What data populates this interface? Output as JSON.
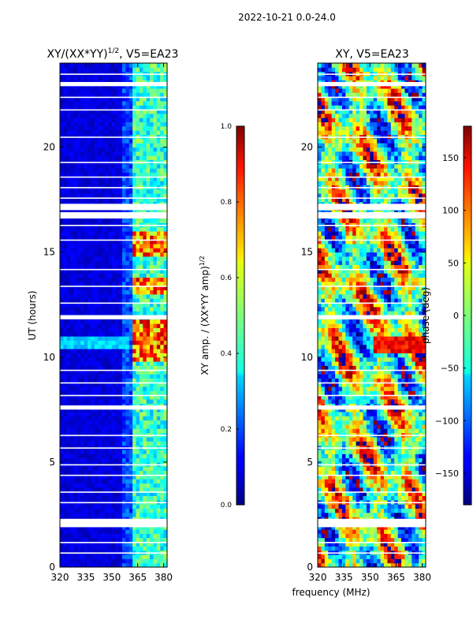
{
  "suptitle": "2022-10-21 0.0-24.0",
  "shared_xlabel": "frequency (MHz)",
  "chart_data": [
    {
      "type": "heatmap",
      "title_main": "XY/(XX*YY)",
      "title_exp": "1/2",
      "title_tail": ", V5=EA23",
      "xlabel": "",
      "ylabel": "UT (hours)",
      "xlim": [
        320,
        382
      ],
      "ylim": [
        0,
        24
      ],
      "xticks": [
        320,
        335,
        350,
        365,
        380
      ],
      "yticks": [
        0,
        5,
        10,
        15,
        20
      ],
      "bright_channels_mhz": [
        [
          362,
          366
        ],
        [
          367,
          371
        ],
        [
          372,
          376
        ],
        [
          377,
          381
        ]
      ],
      "high_amp_intervals_hours": [
        [
          9.8,
          11.8
        ],
        [
          13.0,
          13.8
        ],
        [
          14.8,
          16.0
        ]
      ],
      "flagged_gaps_hours": [
        [
          1.9,
          2.3
        ],
        [
          7.5,
          7.7
        ],
        [
          11.8,
          12.0
        ],
        [
          16.6,
          16.9
        ],
        [
          17.0,
          17.3
        ],
        [
          22.9,
          23.1
        ]
      ],
      "colorbar": {
        "label_main": "XY amp. / (XX*YY amp)",
        "label_exp": "1/2",
        "range": [
          0.0,
          1.0
        ],
        "ticks": [
          "0.0",
          "0.2",
          "0.4",
          "0.6",
          "0.8",
          "1.0"
        ]
      }
    },
    {
      "type": "heatmap",
      "title_main": "XY, V5=EA23",
      "xlabel": "frequency (MHz)",
      "ylabel": "",
      "xlim": [
        320,
        382
      ],
      "ylim": [
        0,
        24
      ],
      "xticks": [
        320,
        335,
        350,
        365,
        380
      ],
      "yticks": [
        0,
        5,
        10,
        15,
        20
      ],
      "flagged_gaps_hours": [
        [
          1.9,
          2.3
        ],
        [
          7.5,
          7.7
        ],
        [
          11.8,
          12.0
        ],
        [
          16.6,
          16.9
        ],
        [
          17.0,
          17.3
        ],
        [
          22.9,
          23.1
        ]
      ],
      "colorbar": {
        "label_main": "phase (deg)",
        "range": [
          -180,
          180
        ],
        "ticks": [
          "150",
          "100",
          "50",
          "0",
          "−50",
          "−100",
          "−150"
        ],
        "tick_values": [
          150,
          100,
          50,
          0,
          -50,
          -100,
          -150
        ]
      }
    }
  ]
}
